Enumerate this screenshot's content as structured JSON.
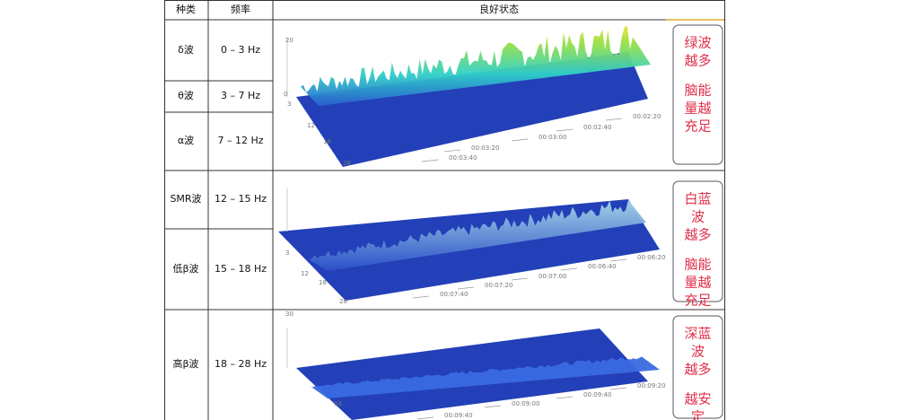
{
  "table": {
    "headers": [
      "种类",
      "频率",
      "良好状态"
    ],
    "rows": [
      {
        "type": "δ波",
        "freq": "0 – 3 Hz"
      },
      {
        "type": "θ波",
        "freq": "3 – 7 Hz"
      },
      {
        "type": "α波",
        "freq": "7 – 12 Hz"
      },
      {
        "type": "SMR波",
        "freq": "12 – 15 Hz"
      },
      {
        "type": "低β波",
        "freq": "15 – 18 Hz"
      },
      {
        "type": "高β波",
        "freq": "18 – 28 Hz"
      }
    ]
  },
  "panels": [
    {
      "axis_labels": [
        "20",
        "0",
        "3",
        "12",
        "18",
        "28"
      ],
      "time_labels": [
        "00:03:40",
        "00:03:20",
        "00:03:00",
        "00:02:40",
        "00:02:20"
      ],
      "note": [
        [
          "绿波",
          "越多"
        ],
        [
          "脑能",
          "量越",
          "充足"
        ]
      ]
    },
    {
      "axis_labels": [
        "3",
        "12",
        "18",
        "28"
      ],
      "time_labels": [
        "00:07:40",
        "00:07:20",
        "00:07:00",
        "00:06:40",
        "00:06:20"
      ],
      "note": [
        [
          "白蓝",
          "波",
          "越多"
        ],
        [
          "脑能",
          "量越",
          "充足"
        ]
      ]
    },
    {
      "axis_labels": [
        "30",
        "18"
      ],
      "time_labels": [
        "00:09:40",
        "00:09:00",
        "00:09:40",
        "00:09:20"
      ],
      "note": [
        [
          "深蓝",
          "波",
          "越多"
        ],
        [
          "越安",
          "定"
        ]
      ]
    }
  ]
}
